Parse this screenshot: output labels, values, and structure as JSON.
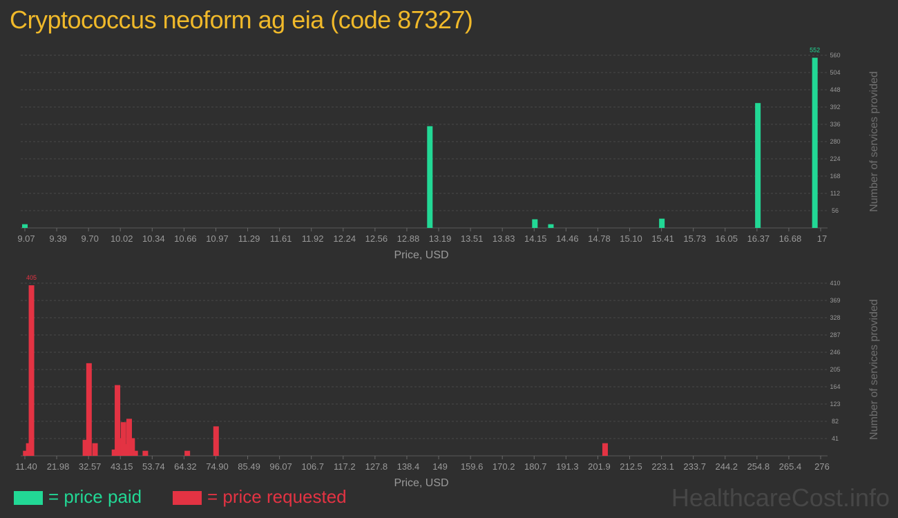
{
  "title": "Cryptococcus neoform ag eia (code 87327)",
  "colors": {
    "paid": "#22d895",
    "requested": "#e33343",
    "title": "#f0b92a",
    "grid": "#4a4a4a",
    "axis_text": "#9a9a9a"
  },
  "legend": {
    "paid_label": "= price paid",
    "requested_label": "= price requested"
  },
  "watermark": "HealthcareCost.info",
  "chart_data": [
    {
      "id": "paid",
      "type": "bar",
      "xlabel": "Price, USD",
      "ylabel": "Number of services provided",
      "x_range": [
        9.07,
        17
      ],
      "ylim": [
        0,
        560
      ],
      "y_ticks": [
        56,
        112,
        168,
        224,
        280,
        336,
        392,
        448,
        504,
        560
      ],
      "x_tick_labels": [
        "9.07",
        "9.39",
        "9.70",
        "10.02",
        "10.34",
        "10.66",
        "10.97",
        "11.29",
        "11.61",
        "11.92",
        "12.24",
        "12.56",
        "12.88",
        "13.19",
        "13.51",
        "13.83",
        "14.15",
        "14.46",
        "14.78",
        "15.10",
        "15.41",
        "15.73",
        "16.05",
        "16.37",
        "16.68",
        "17"
      ],
      "grid": true,
      "bars": [
        {
          "x": 9.07,
          "value": 12
        },
        {
          "x": 13.12,
          "value": 330
        },
        {
          "x": 14.17,
          "value": 28
        },
        {
          "x": 14.33,
          "value": 12
        },
        {
          "x": 15.44,
          "value": 30
        },
        {
          "x": 16.4,
          "value": 405
        },
        {
          "x": 16.97,
          "value": 552,
          "label": "552"
        }
      ]
    },
    {
      "id": "requested",
      "type": "bar",
      "xlabel": "Price, USD",
      "ylabel": "Number of services provided",
      "x_range": [
        11.4,
        276
      ],
      "ylim": [
        0,
        410
      ],
      "y_ticks": [
        41,
        82,
        123,
        164,
        205,
        246,
        287,
        328,
        369,
        410
      ],
      "x_tick_labels": [
        "11.40",
        "21.98",
        "32.57",
        "43.15",
        "53.74",
        "64.32",
        "74.90",
        "85.49",
        "96.07",
        "106.7",
        "117.2",
        "127.8",
        "138.4",
        "149",
        "159.6",
        "170.2",
        "180.7",
        "191.3",
        "201.9",
        "212.5",
        "223.1",
        "233.7",
        "244.2",
        "254.8",
        "265.4",
        "276"
      ],
      "grid": true,
      "bars": [
        {
          "x": 11.7,
          "value": 12
        },
        {
          "x": 12.7,
          "value": 30
        },
        {
          "x": 13.6,
          "value": 405,
          "label": "405"
        },
        {
          "x": 31.6,
          "value": 38
        },
        {
          "x": 32.5,
          "value": 15
        },
        {
          "x": 32.8,
          "value": 220
        },
        {
          "x": 34.8,
          "value": 30
        },
        {
          "x": 41.3,
          "value": 15
        },
        {
          "x": 42.3,
          "value": 168
        },
        {
          "x": 43.3,
          "value": 42
        },
        {
          "x": 44.3,
          "value": 80
        },
        {
          "x": 45.3,
          "value": 28
        },
        {
          "x": 46.2,
          "value": 88
        },
        {
          "x": 47.2,
          "value": 42
        },
        {
          "x": 48.2,
          "value": 12
        },
        {
          "x": 51.6,
          "value": 12
        },
        {
          "x": 65.6,
          "value": 12
        },
        {
          "x": 75.2,
          "value": 70
        },
        {
          "x": 205.0,
          "value": 30
        }
      ]
    }
  ]
}
